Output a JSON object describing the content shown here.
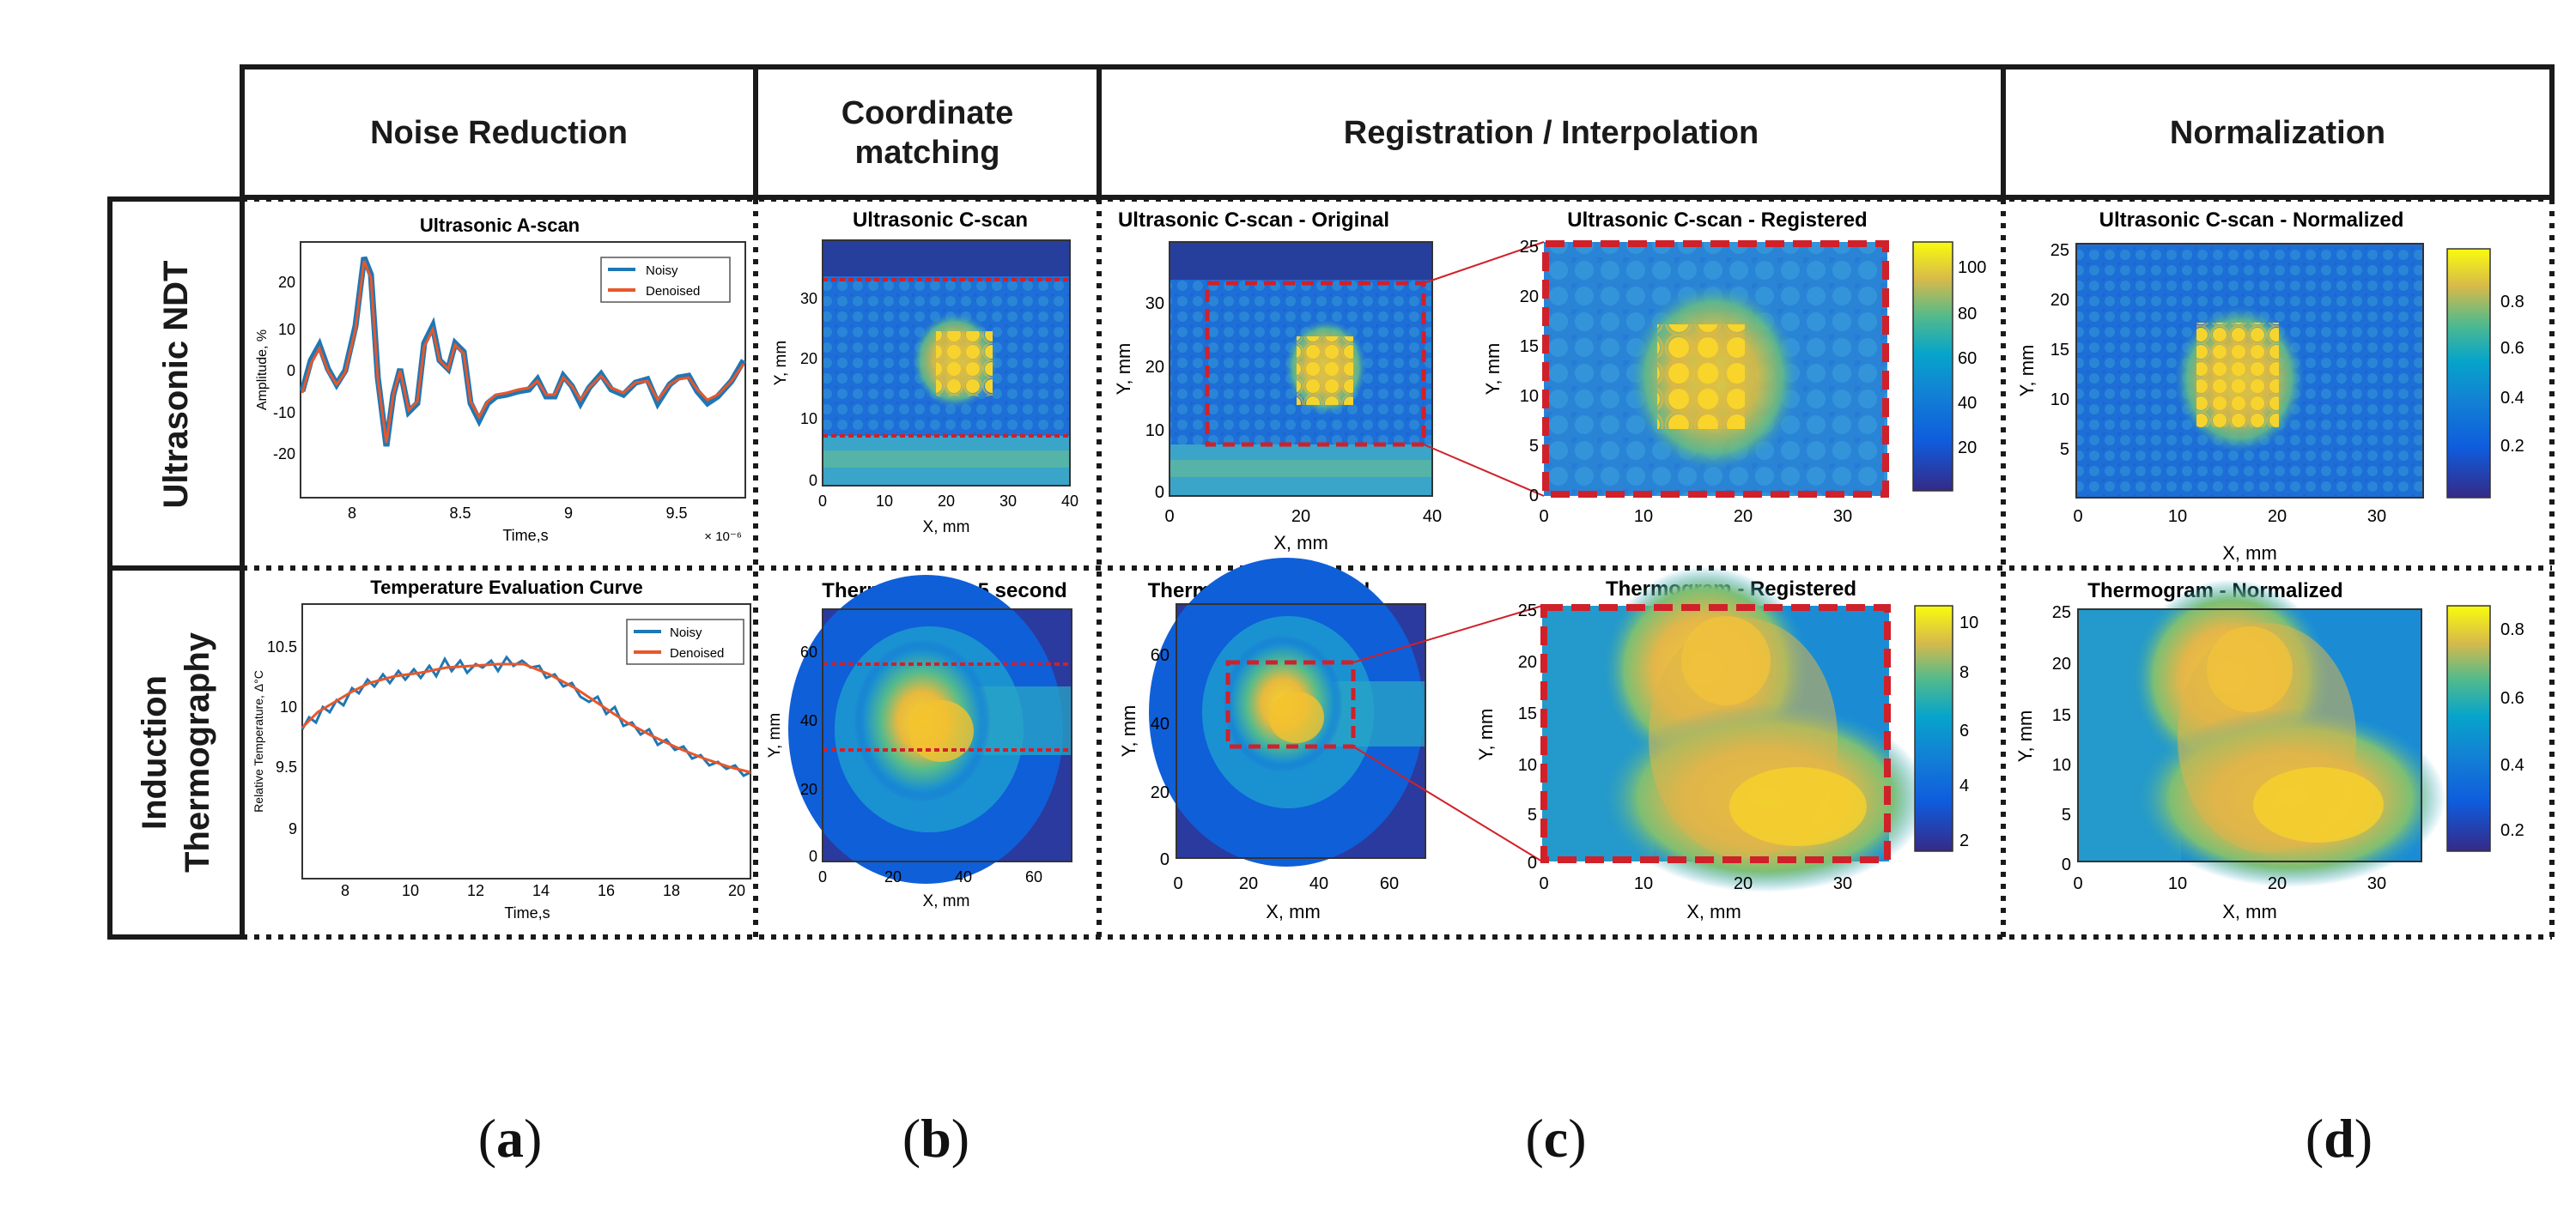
{
  "columns": [
    "Noise Reduction",
    "Coordinate matching",
    "Registration / Interpolation",
    "Normalization"
  ],
  "rows": [
    "Ultrasonic NDT",
    "Induction Thermography"
  ],
  "sublabels": [
    {
      "open": "(",
      "letter": "a",
      "close": ")"
    },
    {
      "open": "(",
      "letter": "b",
      "close": ")"
    },
    {
      "open": "(",
      "letter": "c",
      "close": ")"
    },
    {
      "open": "(",
      "letter": "d",
      "close": ")"
    }
  ],
  "panels": {
    "us_ascan": {
      "title": "Ultrasonic A-scan",
      "xlabel": "Time,s",
      "ylabel": "Amplitude, %",
      "x_exponent": "× 10⁻⁶",
      "xticks": [
        "8",
        "8.5",
        "9",
        "9.5"
      ],
      "yticks": [
        "20",
        "10",
        "0",
        "-10",
        "-20"
      ],
      "legend": [
        "Noisy",
        "Denoised"
      ]
    },
    "us_cscan": {
      "title": "Ultrasonic C-scan",
      "xlabel": "X, mm",
      "ylabel": "Y, mm",
      "xticks": [
        "0",
        "10",
        "20",
        "30",
        "40"
      ],
      "yticks": [
        "30",
        "20",
        "10",
        "0"
      ]
    },
    "us_orig": {
      "title": "Ultrasonic C-scan - Original",
      "xlabel": "X, mm",
      "ylabel": "Y, mm",
      "xticks": [
        "0",
        "20",
        "40"
      ],
      "yticks": [
        "30",
        "20",
        "10",
        "0"
      ]
    },
    "us_reg": {
      "title": "Ultrasonic C-scan - Registered",
      "xticks": [
        "0",
        "10",
        "20",
        "30"
      ],
      "yticks": [
        "25",
        "20",
        "15",
        "10",
        "5",
        "0"
      ],
      "ylabel": "Y, mm",
      "cbar": [
        "100",
        "80",
        "60",
        "40",
        "20"
      ]
    },
    "us_norm": {
      "title": "Ultrasonic C-scan - Normalized",
      "xlabel": "X, mm",
      "ylabel": "Y, mm",
      "xticks": [
        "0",
        "10",
        "20",
        "30"
      ],
      "yticks": [
        "25",
        "20",
        "15",
        "10",
        "5"
      ],
      "cbar": [
        "0.8",
        "0.6",
        "0.4",
        "0.2"
      ]
    },
    "th_curve": {
      "title": "Temperature Evaluation Curve",
      "xlabel": "Time,s",
      "ylabel": "Relative Temperature, Δ°C",
      "xticks": [
        "8",
        "10",
        "12",
        "14",
        "16",
        "18",
        "20"
      ],
      "yticks": [
        "10.5",
        "10",
        "9.5",
        "9"
      ],
      "legend": [
        "Noisy",
        "Denoised"
      ]
    },
    "th_thermo": {
      "title": "Thermogram at 5 second",
      "xlabel": "X, mm",
      "ylabel": "Y, mm",
      "xticks": [
        "0",
        "20",
        "40",
        "60"
      ],
      "yticks": [
        "60",
        "40",
        "20",
        "0"
      ]
    },
    "th_orig": {
      "title": "Thermogram - Original",
      "xlabel": "X, mm",
      "ylabel": "Y, mm",
      "xticks": [
        "0",
        "20",
        "40",
        "60"
      ],
      "yticks": [
        "60",
        "40",
        "20",
        "0"
      ]
    },
    "th_reg": {
      "title": "Thermogram - Registered",
      "xlabel": "X, mm",
      "ylabel": "Y, mm",
      "xticks": [
        "0",
        "10",
        "20",
        "30"
      ],
      "yticks": [
        "25",
        "20",
        "15",
        "10",
        "5",
        "0"
      ],
      "cbar": [
        "10",
        "8",
        "6",
        "4",
        "2"
      ]
    },
    "th_norm": {
      "title": "Thermogram - Normalized",
      "xlabel": "X, mm",
      "ylabel": "Y, mm",
      "xticks": [
        "0",
        "10",
        "20",
        "30"
      ],
      "yticks": [
        "25",
        "20",
        "15",
        "10",
        "5",
        "0"
      ],
      "cbar": [
        "0.8",
        "0.6",
        "0.4",
        "0.2"
      ]
    }
  },
  "colors": {
    "noisy": "#1f77b4",
    "denoised": "#e8572b",
    "dashed_red": "#d0202a",
    "grid_border": "#1a1a1a"
  }
}
